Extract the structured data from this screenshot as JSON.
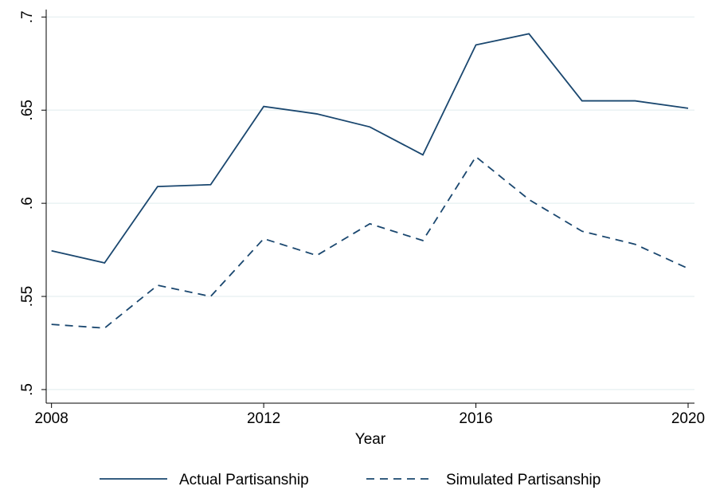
{
  "chart_data": {
    "type": "line",
    "x_label": "Year",
    "x": [
      2008,
      2009,
      2010,
      2011,
      2012,
      2013,
      2014,
      2015,
      2016,
      2017,
      2018,
      2019,
      2020
    ],
    "series": [
      {
        "name": "Actual Partisanship",
        "color": "#1a476f",
        "dash": "solid",
        "values": [
          0.5745,
          0.568,
          0.609,
          0.61,
          0.652,
          0.648,
          0.641,
          0.626,
          0.685,
          0.691,
          0.655,
          0.655,
          0.651
        ]
      },
      {
        "name": "Simulated Partisanship",
        "color": "#1a476f",
        "dash": "dashed",
        "values": [
          0.535,
          0.533,
          0.556,
          0.55,
          0.581,
          0.572,
          0.589,
          0.58,
          0.625,
          0.602,
          0.585,
          0.578,
          0.565
        ]
      }
    ],
    "xlim": [
      2007.9,
      2020.12
    ],
    "xticks": [
      2008,
      2012,
      2016,
      2020
    ],
    "ylim": [
      0.4927,
      0.704
    ],
    "yticks": [
      {
        "value": 0.5,
        "label": ".5"
      },
      {
        "value": 0.55,
        "label": ".55"
      },
      {
        "value": 0.6,
        "label": ".6"
      },
      {
        "value": 0.65,
        "label": ".65"
      },
      {
        "value": 0.7,
        "label": ".7"
      }
    ],
    "grid": true,
    "legend": "bottom"
  }
}
